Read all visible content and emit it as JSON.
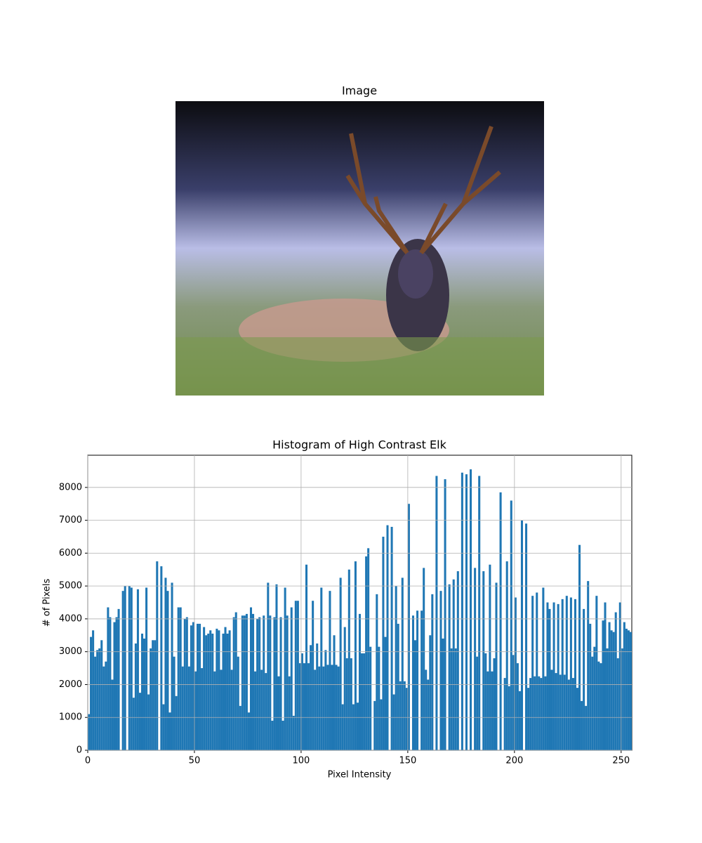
{
  "chart_data": [
    {
      "type": "image",
      "title": "Image"
    },
    {
      "type": "histogram",
      "title": "Histogram of High Contrast Elk",
      "x_label": "Pixel Intensity",
      "y_label": "# of Pixels",
      "color": "#1f77b4",
      "grid": true,
      "xlim": [
        0,
        255
      ],
      "ylim": [
        0,
        8980
      ],
      "xticks": [
        0,
        50,
        100,
        150,
        200,
        250
      ],
      "yticks": [
        0,
        1000,
        2000,
        3000,
        4000,
        5000,
        6000,
        7000,
        8000
      ],
      "bins": [
        0,
        1,
        2,
        3,
        4,
        5,
        6,
        7,
        8,
        9,
        10,
        11,
        12,
        13,
        14,
        15,
        16,
        17,
        18,
        19,
        20,
        21,
        22,
        23,
        24,
        25,
        26,
        27,
        28,
        29,
        30,
        31,
        32,
        33,
        34,
        35,
        36,
        37,
        38,
        39,
        40,
        41,
        42,
        43,
        44,
        45,
        46,
        47,
        48,
        49,
        50,
        51,
        52,
        53,
        54,
        55,
        56,
        57,
        58,
        59,
        60,
        61,
        62,
        63,
        64,
        65,
        66,
        67,
        68,
        69,
        70,
        71,
        72,
        73,
        74,
        75,
        76,
        77,
        78,
        79,
        80,
        81,
        82,
        83,
        84,
        85,
        86,
        87,
        88,
        89,
        90,
        91,
        92,
        93,
        94,
        95,
        96,
        97,
        98,
        99,
        100,
        101,
        102,
        103,
        104,
        105,
        106,
        107,
        108,
        109,
        110,
        111,
        112,
        113,
        114,
        115,
        116,
        117,
        118,
        119,
        120,
        121,
        122,
        123,
        124,
        125,
        126,
        127,
        128,
        129,
        130,
        131,
        132,
        133,
        134,
        135,
        136,
        137,
        138,
        139,
        140,
        141,
        142,
        143,
        144,
        145,
        146,
        147,
        148,
        149,
        150,
        151,
        152,
        153,
        154,
        155,
        156,
        157,
        158,
        159,
        160,
        161,
        162,
        163,
        164,
        165,
        166,
        167,
        168,
        169,
        170,
        171,
        172,
        173,
        174,
        175,
        176,
        177,
        178,
        179,
        180,
        181,
        182,
        183,
        184,
        185,
        186,
        187,
        188,
        189,
        190,
        191,
        192,
        193,
        194,
        195,
        196,
        197,
        198,
        199,
        200,
        201,
        202,
        203,
        204,
        205,
        206,
        207,
        208,
        209,
        210,
        211,
        212,
        213,
        214,
        215,
        216,
        217,
        218,
        219,
        220,
        221,
        222,
        223,
        224,
        225,
        226,
        227,
        228,
        229,
        230,
        231,
        232,
        233,
        234,
        235,
        236,
        237,
        238,
        239,
        240,
        241,
        242,
        243,
        244,
        245,
        246,
        247,
        248,
        249,
        250,
        251,
        252,
        253,
        254,
        255,
        256
      ],
      "values": [
        1100,
        3450,
        3650,
        2850,
        3050,
        3100,
        3350,
        2550,
        2700,
        4350,
        4050,
        2150,
        3900,
        4050,
        4300,
        0,
        4850,
        5000,
        0,
        5000,
        4950,
        1600,
        3250,
        4900,
        1750,
        3550,
        3400,
        4950,
        1700,
        3100,
        3350,
        3350,
        5750,
        0,
        5600,
        1400,
        5250,
        4850,
        1150,
        5100,
        2850,
        1650,
        4350,
        4350,
        2550,
        4000,
        4050,
        2550,
        3800,
        3900,
        2400,
        3850,
        3850,
        2500,
        3750,
        3500,
        3550,
        3650,
        3550,
        2400,
        3700,
        3650,
        2450,
        3550,
        3750,
        3550,
        3650,
        2450,
        4050,
        4200,
        2850,
        1350,
        4100,
        4100,
        4150,
        1150,
        4350,
        4150,
        2400,
        4000,
        4050,
        2450,
        4100,
        2350,
        5100,
        4100,
        900,
        4050,
        5050,
        2250,
        4050,
        900,
        4950,
        4100,
        2250,
        4350,
        1050,
        4550,
        4550,
        2650,
        2950,
        2650,
        5650,
        2650,
        3200,
        4550,
        2450,
        3250,
        2550,
        4950,
        2550,
        3050,
        2600,
        4850,
        2600,
        3500,
        2600,
        2550,
        5250,
        1400,
        3750,
        2800,
        5500,
        2800,
        1400,
        5750,
        1450,
        4150,
        2950,
        2950,
        5900,
        6150,
        3150,
        0,
        1500,
        4750,
        3150,
        1550,
        6500,
        3450,
        6850,
        0,
        6800,
        1700,
        5000,
        3850,
        2100,
        5250,
        2100,
        1900,
        7500,
        0,
        4100,
        3350,
        4250,
        0,
        4250,
        5550,
        2450,
        2150,
        3500,
        4750,
        0,
        8350,
        0,
        4850,
        3400,
        8250,
        0,
        5050,
        3100,
        5200,
        3100,
        5450,
        0,
        8450,
        0,
        8400,
        0,
        8550,
        0,
        5550,
        2850,
        8350,
        0,
        5450,
        2950,
        2400,
        5650,
        2400,
        2800,
        5100,
        0,
        7850,
        0,
        2200,
        5750,
        1950,
        7600,
        2900,
        4650,
        2650,
        1800,
        7000,
        0,
        6900,
        1900,
        2200,
        4700,
        2250,
        4800,
        2250,
        2200,
        4950,
        2250,
        4500,
        4300,
        2450,
        4500,
        2350,
        4450,
        2300,
        4600,
        2300,
        4700,
        2150,
        4650,
        2200,
        4600,
        1900,
        6250,
        1500,
        4300,
        1350,
        5150,
        3850,
        2850,
        3150,
        4700,
        2700,
        2650,
        3950,
        4500,
        3100,
        3900,
        3650,
        3600,
        4200,
        2800,
        4500,
        3100,
        3900,
        3700,
        3650,
        3600,
        3600
      ]
    }
  ]
}
